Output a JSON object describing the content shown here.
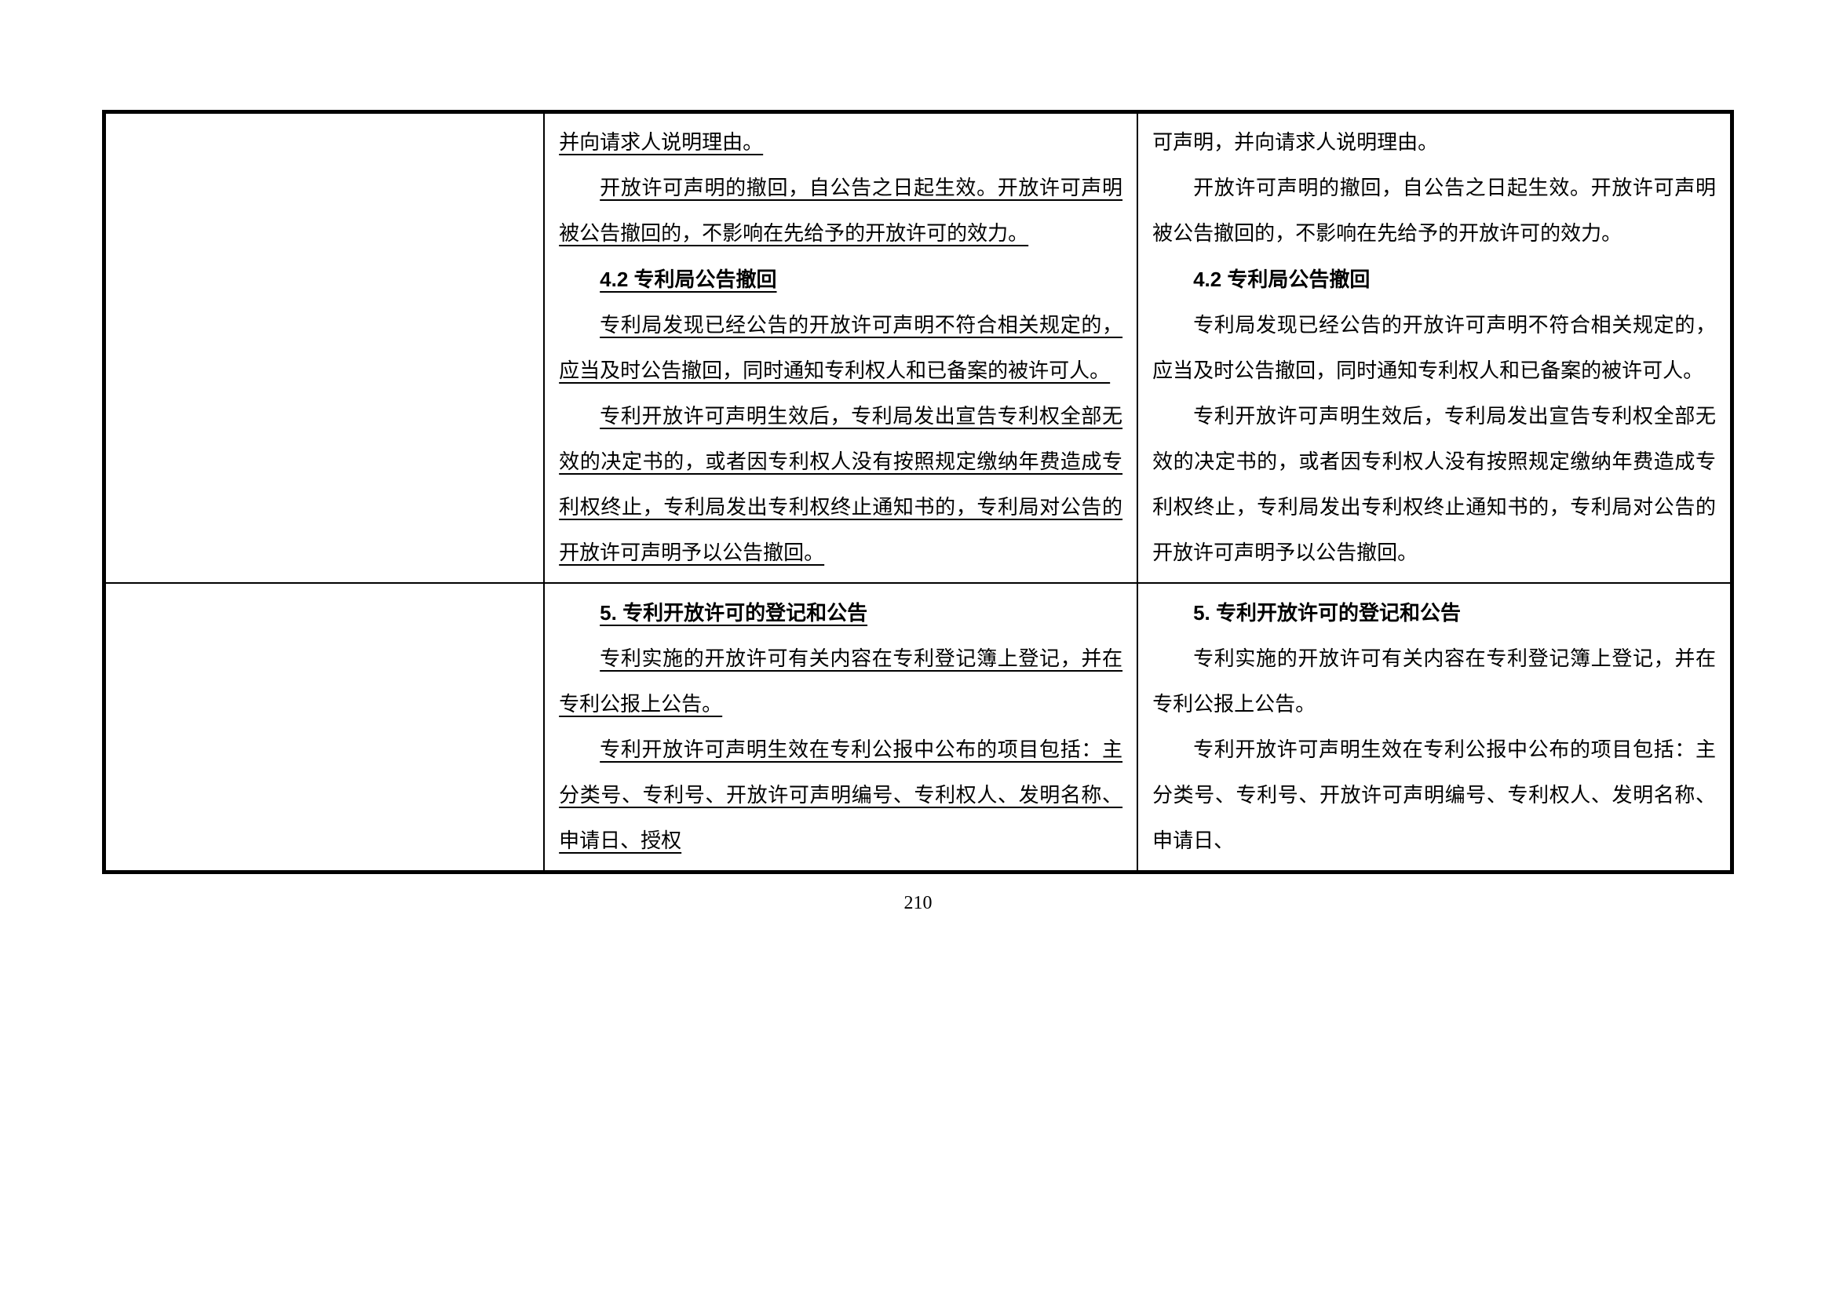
{
  "page_number": "210",
  "table": {
    "rows": [
      {
        "col1": [],
        "col2": [
          {
            "text": "并向请求人说明理由。",
            "indent": false,
            "underline": true,
            "bold": false
          },
          {
            "text": "开放许可声明的撤回，自公告之日起生效。开放许可声明被公告撤回的，不影响在先给予的开放许可的效力。",
            "indent": true,
            "underline": true,
            "bold": false
          },
          {
            "text": "4.2 专利局公告撤回",
            "indent": true,
            "underline": true,
            "bold": true
          },
          {
            "text": "专利局发现已经公告的开放许可声明不符合相关规定的，应当及时公告撤回，同时通知专利权人和已备案的被许可人。",
            "indent": true,
            "underline": true,
            "bold": false
          },
          {
            "text": "专利开放许可声明生效后，专利局发出宣告专利权全部无效的决定书的，或者因专利权人没有按照规定缴纳年费造成专利权终止，专利局发出专利权终止通知书的，专利局对公告的开放许可声明予以公告撤回。",
            "indent": true,
            "underline": true,
            "bold": false
          }
        ],
        "col3": [
          {
            "text": "可声明，并向请求人说明理由。",
            "indent": false,
            "underline": false,
            "bold": false
          },
          {
            "text": "开放许可声明的撤回，自公告之日起生效。开放许可声明被公告撤回的，不影响在先给予的开放许可的效力。",
            "indent": true,
            "underline": false,
            "bold": false
          },
          {
            "text": "4.2 专利局公告撤回",
            "indent": true,
            "underline": false,
            "bold": true
          },
          {
            "text": "专利局发现已经公告的开放许可声明不符合相关规定的，应当及时公告撤回，同时通知专利权人和已备案的被许可人。",
            "indent": true,
            "underline": false,
            "bold": false
          },
          {
            "text": "专利开放许可声明生效后，专利局发出宣告专利权全部无效的决定书的，或者因专利权人没有按照规定缴纳年费造成专利权终止，专利局发出专利权终止通知书的，专利局对公告的开放许可声明予以公告撤回。",
            "indent": true,
            "underline": false,
            "bold": false
          }
        ]
      },
      {
        "col1": [],
        "col2": [
          {
            "text": "5. 专利开放许可的登记和公告",
            "indent": true,
            "underline": true,
            "bold": true
          },
          {
            "text": "专利实施的开放许可有关内容在专利登记簿上登记，并在专利公报上公告。",
            "indent": true,
            "underline": true,
            "bold": false
          },
          {
            "text": "专利开放许可声明生效在专利公报中公布的项目包括：主分类号、专利号、开放许可声明编号、专利权人、发明名称、申请日、授权",
            "indent": true,
            "underline": true,
            "bold": false
          }
        ],
        "col3": [
          {
            "text": "5. 专利开放许可的登记和公告",
            "indent": true,
            "underline": false,
            "bold": true
          },
          {
            "text": "专利实施的开放许可有关内容在专利登记簿上登记，并在专利公报上公告。",
            "indent": true,
            "underline": false,
            "bold": false
          },
          {
            "text": "专利开放许可声明生效在专利公报中公布的项目包括：主分类号、专利号、开放许可声明编号、专利权人、发明名称、申请日、",
            "indent": true,
            "underline": false,
            "bold": false
          }
        ]
      }
    ]
  }
}
